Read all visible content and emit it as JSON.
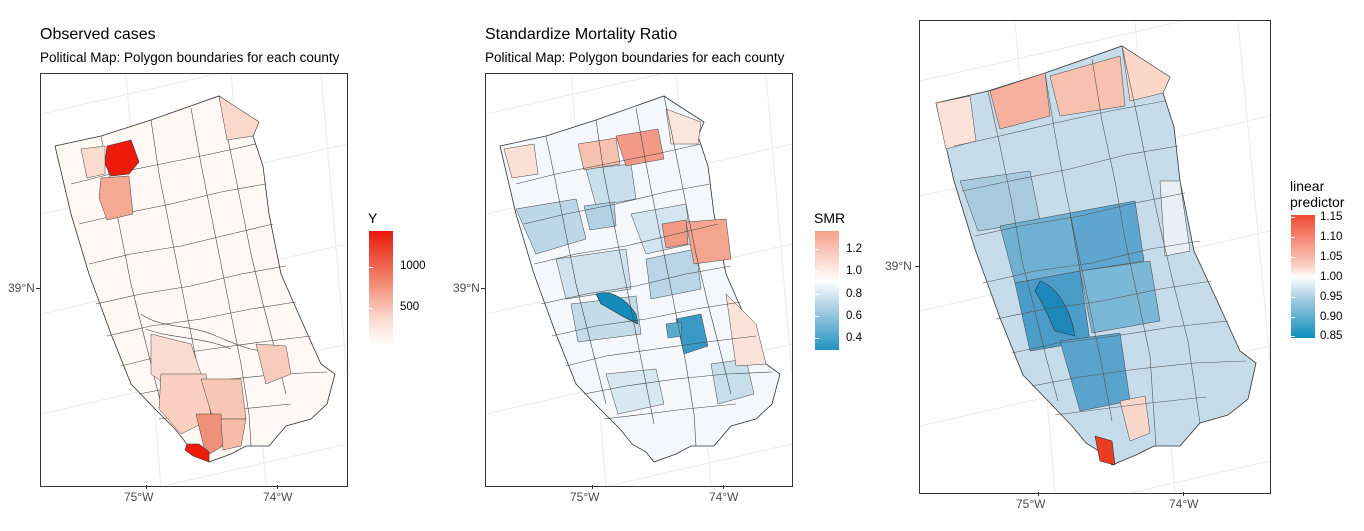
{
  "maps": [
    {
      "title": "Observed cases",
      "subtitle": "Political Map: Polygon boundaries for each county",
      "lat_label": "39°N",
      "lon_labels": [
        "75°W",
        "74°W"
      ],
      "legend_title": "Y",
      "legend_labels": [
        "1000",
        "500"
      ],
      "legend_colors": [
        "#e8190a",
        "#f28a72",
        "#ffffff"
      ],
      "highlighted_regions": {
        "max": "#ee1a0b",
        "high": [
          "#f0a08d",
          "#f2b2a2",
          "#fbdfd6"
        ]
      }
    },
    {
      "title": "Standardize Mortality Ratio",
      "subtitle": "Political Map: Polygon boundaries for each county",
      "lat_label": "39°N",
      "lon_labels": [
        "75°W",
        "74°W"
      ],
      "legend_title": "SMR",
      "legend_labels": [
        "1.2",
        "1.0",
        "0.8",
        "0.6",
        "0.4"
      ],
      "legend_colors": [
        "#f5a08a",
        "#ffffff",
        "#1f93bf"
      ],
      "highlighted_regions": {
        "high": "#f29a86",
        "low": "#148bb8"
      }
    },
    {
      "title": "",
      "subtitle": "",
      "lat_label": "39°N",
      "lon_labels": [
        "75°W",
        "74°W"
      ],
      "legend_title": "linear predictor",
      "legend_title_lines": [
        "linear",
        "predictor"
      ],
      "legend_labels": [
        "1.15",
        "1.10",
        "1.05",
        "1.00",
        "0.95",
        "0.90",
        "0.85"
      ],
      "legend_colors": [
        "#f04a33",
        "#ffffff",
        "#0a8fbd"
      ],
      "highlighted_regions": {
        "max": "#ea3b23",
        "low": "#1f88bb"
      }
    }
  ]
}
